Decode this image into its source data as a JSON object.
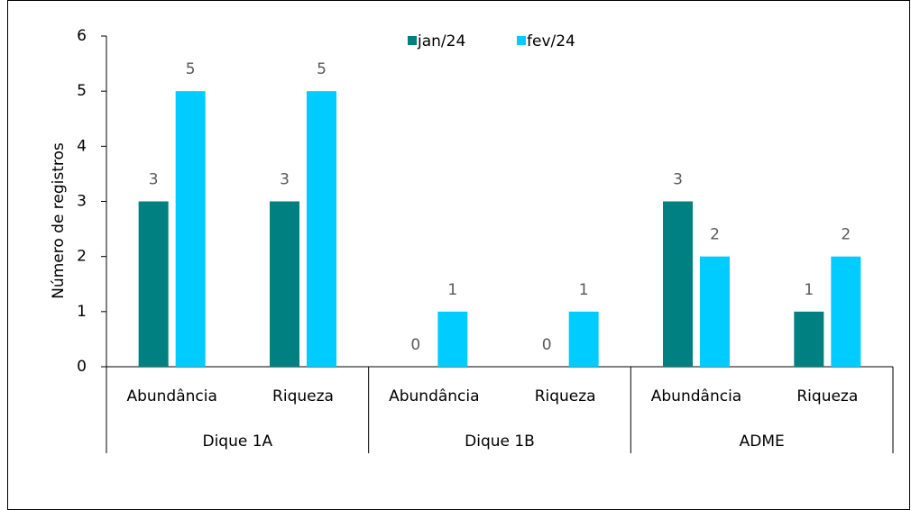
{
  "chart_data": {
    "type": "bar",
    "y_label": "Número de registros",
    "categories": [
      "Abundância",
      "Riqueza",
      "Abundância",
      "Riqueza",
      "Abundância",
      "Riqueza"
    ],
    "groups": [
      "Dique 1A",
      "Dique 1B",
      "ADME"
    ],
    "series": [
      {
        "name": "jan/24",
        "color": "#008080",
        "values": [
          3,
          3,
          0,
          0,
          3,
          1
        ]
      },
      {
        "name": "fev/24",
        "color": "#00ccff",
        "values": [
          5,
          5,
          1,
          1,
          2,
          2
        ]
      }
    ],
    "ylim": [
      0,
      6
    ],
    "yticks": [
      0,
      1,
      2,
      3,
      4,
      5,
      6
    ],
    "grid": false,
    "legend": "top"
  }
}
